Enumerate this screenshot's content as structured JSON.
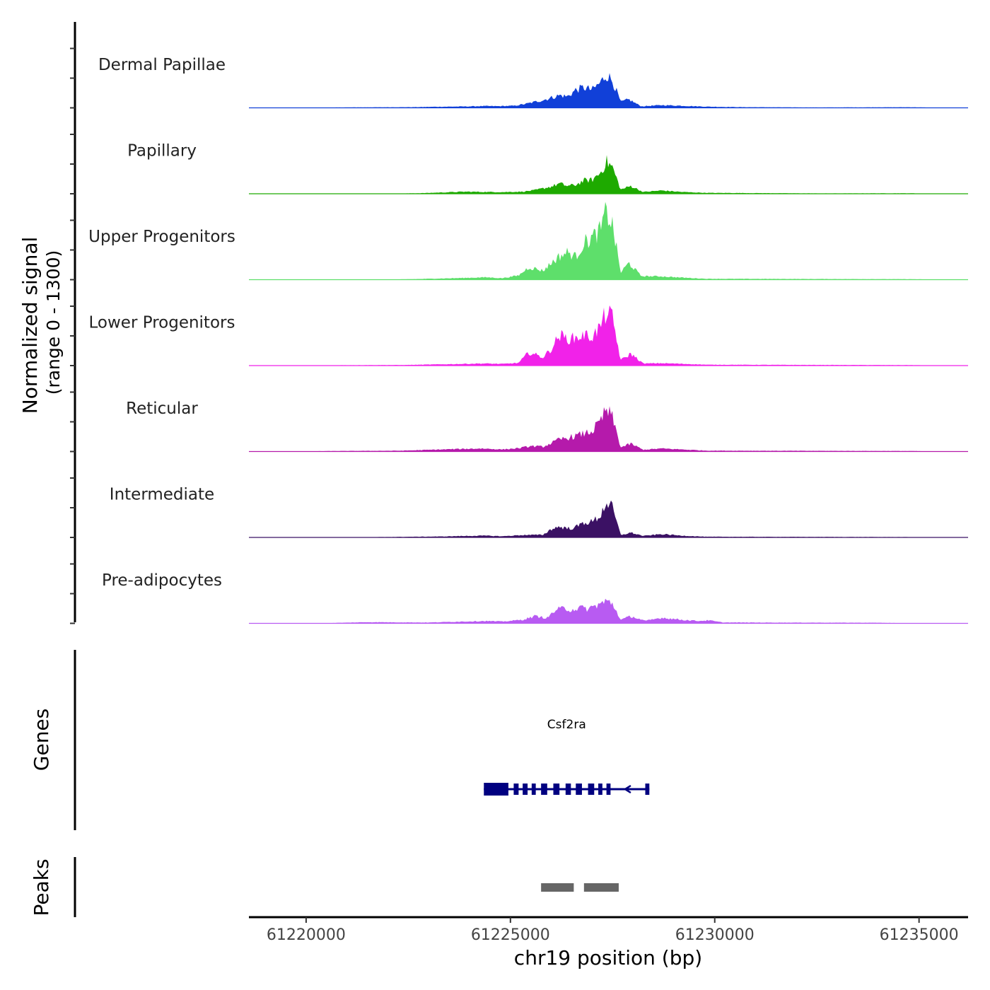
{
  "chart_data": {
    "type": "area",
    "title": "",
    "xlabel": "chr19 position (bp)",
    "ylabel_line1": "Normalized signal",
    "ylabel_line2": "(range 0 - 1300)",
    "ylim": [
      0,
      1300
    ],
    "xlim": [
      61218600,
      61236200
    ],
    "x_ticks": [
      61220000,
      61225000,
      61230000,
      61235000
    ],
    "x_tick_labels": [
      "61220000",
      "61225000",
      "61230000",
      "61235000"
    ],
    "tracks": [
      {
        "name": "Dermal Papillae",
        "color": "#1140D8",
        "profile": [
          [
            61220800,
            6
          ],
          [
            61221300,
            8
          ],
          [
            61222700,
            12
          ],
          [
            61223200,
            18
          ],
          [
            61223800,
            22
          ],
          [
            61224400,
            30
          ],
          [
            61224700,
            28
          ],
          [
            61225100,
            35
          ],
          [
            61225400,
            70
          ],
          [
            61225800,
            130
          ],
          [
            61226000,
            170
          ],
          [
            61226200,
            210
          ],
          [
            61226400,
            190
          ],
          [
            61226600,
            300
          ],
          [
            61226800,
            340
          ],
          [
            61227000,
            300
          ],
          [
            61227200,
            420
          ],
          [
            61227350,
            560
          ],
          [
            61227500,
            450
          ],
          [
            61227700,
            100
          ],
          [
            61227900,
            140
          ],
          [
            61228200,
            25
          ],
          [
            61228700,
            45
          ],
          [
            61229200,
            35
          ],
          [
            61229800,
            20
          ],
          [
            61230600,
            12
          ],
          [
            61232400,
            6
          ],
          [
            61234800,
            10
          ]
        ]
      },
      {
        "name": "Papillary",
        "color": "#1EAA00",
        "profile": [
          [
            61222800,
            10
          ],
          [
            61223900,
            35
          ],
          [
            61224400,
            30
          ],
          [
            61224800,
            28
          ],
          [
            61225300,
            35
          ],
          [
            61225600,
            60
          ],
          [
            61226000,
            120
          ],
          [
            61226200,
            170
          ],
          [
            61226400,
            130
          ],
          [
            61226600,
            150
          ],
          [
            61226800,
            220
          ],
          [
            61227000,
            230
          ],
          [
            61227200,
            350
          ],
          [
            61227350,
            540
          ],
          [
            61227500,
            440
          ],
          [
            61227700,
            70
          ],
          [
            61227950,
            130
          ],
          [
            61228250,
            30
          ],
          [
            61228700,
            55
          ],
          [
            61229200,
            30
          ],
          [
            61229800,
            15
          ],
          [
            61232600,
            6
          ],
          [
            61234800,
            8
          ]
        ]
      },
      {
        "name": "Upper Progenitors",
        "color": "#5EDF6B",
        "profile": [
          [
            61222800,
            12
          ],
          [
            61223800,
            28
          ],
          [
            61224400,
            40
          ],
          [
            61224800,
            25
          ],
          [
            61225200,
            70
          ],
          [
            61225450,
            210
          ],
          [
            61225800,
            150
          ],
          [
            61226000,
            280
          ],
          [
            61226200,
            390
          ],
          [
            61226400,
            460
          ],
          [
            61226600,
            380
          ],
          [
            61226800,
            620
          ],
          [
            61227000,
            700
          ],
          [
            61227200,
            820
          ],
          [
            61227350,
            1150
          ],
          [
            61227500,
            900
          ],
          [
            61227700,
            120
          ],
          [
            61227900,
            280
          ],
          [
            61228200,
            60
          ],
          [
            61228700,
            55
          ],
          [
            61229200,
            35
          ],
          [
            61229800,
            15
          ],
          [
            61234800,
            8
          ]
        ]
      },
      {
        "name": "Lower Progenitors",
        "color": "#F122E9",
        "profile": [
          [
            61220600,
            6
          ],
          [
            61222400,
            10
          ],
          [
            61223600,
            25
          ],
          [
            61224300,
            35
          ],
          [
            61224800,
            28
          ],
          [
            61225200,
            45
          ],
          [
            61225450,
            220
          ],
          [
            61225800,
            140
          ],
          [
            61226000,
            280
          ],
          [
            61226200,
            510
          ],
          [
            61226400,
            450
          ],
          [
            61226600,
            460
          ],
          [
            61226800,
            510
          ],
          [
            61227000,
            480
          ],
          [
            61227200,
            650
          ],
          [
            61227350,
            900
          ],
          [
            61227500,
            780
          ],
          [
            61227700,
            90
          ],
          [
            61227950,
            200
          ],
          [
            61228250,
            35
          ],
          [
            61228700,
            40
          ],
          [
            61229200,
            30
          ],
          [
            61229800,
            15
          ],
          [
            61234800,
            8
          ]
        ]
      },
      {
        "name": "Reticular",
        "color": "#B51AAB",
        "profile": [
          [
            61220600,
            8
          ],
          [
            61222300,
            14
          ],
          [
            61223600,
            40
          ],
          [
            61224300,
            50
          ],
          [
            61224800,
            35
          ],
          [
            61225200,
            55
          ],
          [
            61225500,
            90
          ],
          [
            61225800,
            80
          ],
          [
            61226000,
            140
          ],
          [
            61226200,
            200
          ],
          [
            61226400,
            230
          ],
          [
            61226600,
            260
          ],
          [
            61226800,
            300
          ],
          [
            61227000,
            340
          ],
          [
            61227200,
            500
          ],
          [
            61227350,
            700
          ],
          [
            61227500,
            560
          ],
          [
            61227700,
            70
          ],
          [
            61227950,
            130
          ],
          [
            61228250,
            30
          ],
          [
            61228700,
            50
          ],
          [
            61229200,
            35
          ],
          [
            61229800,
            15
          ],
          [
            61234800,
            8
          ]
        ]
      },
      {
        "name": "Intermediate",
        "color": "#3B1164",
        "profile": [
          [
            61221800,
            6
          ],
          [
            61223300,
            16
          ],
          [
            61223900,
            25
          ],
          [
            61224400,
            30
          ],
          [
            61224800,
            20
          ],
          [
            61225300,
            40
          ],
          [
            61225800,
            45
          ],
          [
            61226000,
            140
          ],
          [
            61226200,
            180
          ],
          [
            61226400,
            150
          ],
          [
            61226600,
            170
          ],
          [
            61226800,
            250
          ],
          [
            61227000,
            260
          ],
          [
            61227200,
            360
          ],
          [
            61227350,
            600
          ],
          [
            61227500,
            480
          ],
          [
            61227700,
            40
          ],
          [
            61227950,
            80
          ],
          [
            61228250,
            25
          ],
          [
            61228700,
            55
          ],
          [
            61229200,
            30
          ],
          [
            61229800,
            12
          ],
          [
            61234800,
            6
          ]
        ]
      },
      {
        "name": "Pre-adipocytes",
        "color": "#B85BF2",
        "profile": [
          [
            61220600,
            6
          ],
          [
            61221500,
            20
          ],
          [
            61223000,
            14
          ],
          [
            61223800,
            30
          ],
          [
            61224400,
            40
          ],
          [
            61224800,
            30
          ],
          [
            61225300,
            60
          ],
          [
            61225600,
            120
          ],
          [
            61225900,
            90
          ],
          [
            61226100,
            220
          ],
          [
            61226300,
            250
          ],
          [
            61226500,
            230
          ],
          [
            61226700,
            260
          ],
          [
            61226900,
            240
          ],
          [
            61227100,
            300
          ],
          [
            61227350,
            370
          ],
          [
            61227500,
            330
          ],
          [
            61227700,
            60
          ],
          [
            61227950,
            120
          ],
          [
            61228300,
            40
          ],
          [
            61228700,
            95
          ],
          [
            61229200,
            60
          ],
          [
            61229600,
            40
          ],
          [
            61229850,
            50
          ],
          [
            61230200,
            15
          ],
          [
            61234000,
            10
          ]
        ]
      }
    ],
    "genes_track": {
      "label": "Genes",
      "color": "#000080",
      "genes": [
        {
          "name": "Csf2ra",
          "start": 61224350,
          "end": 61228400,
          "strand": "-",
          "exons": [
            [
              61224350,
              61224950
            ],
            [
              61225080,
              61225200
            ],
            [
              61225300,
              61225420
            ],
            [
              61225520,
              61225620
            ],
            [
              61225750,
              61225900
            ],
            [
              61226050,
              61226200
            ],
            [
              61226350,
              61226480
            ],
            [
              61226600,
              61226750
            ],
            [
              61226900,
              61227050
            ],
            [
              61227150,
              61227250
            ],
            [
              61227350,
              61227450
            ],
            [
              61228300,
              61228400
            ]
          ]
        }
      ]
    },
    "peaks_track": {
      "label": "Peaks",
      "color": "#666666",
      "peaks": [
        [
          61225750,
          61226550
        ],
        [
          61226800,
          61227650
        ]
      ]
    }
  }
}
